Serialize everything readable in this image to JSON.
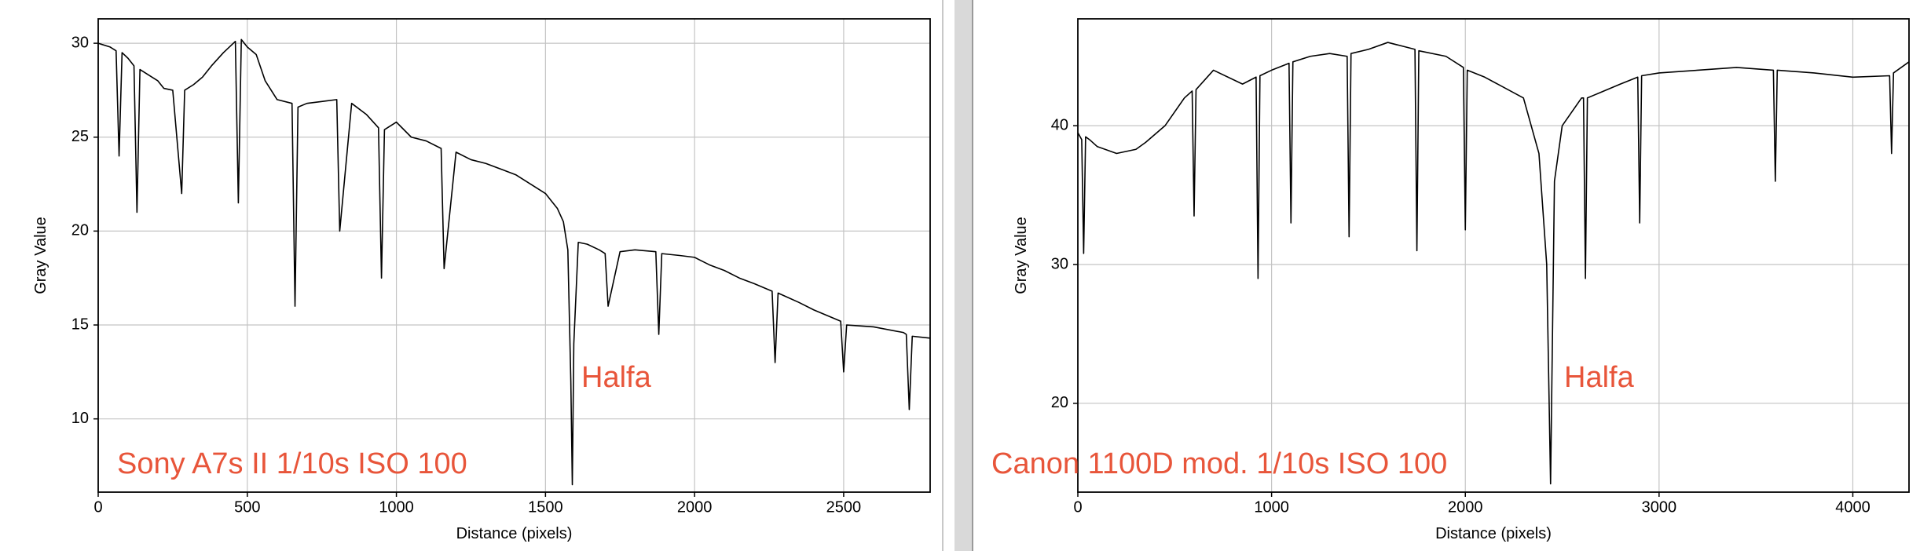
{
  "chart_data": [
    {
      "type": "line",
      "x_label": "Distance (pixels)",
      "y_label": "Gray Value",
      "annotations": [
        "Halfa",
        "Sony A7s II 1/10s ISO 100"
      ],
      "x": [
        0,
        40,
        60,
        70,
        80,
        100,
        120,
        130,
        140,
        180,
        200,
        220,
        250,
        280,
        290,
        320,
        350,
        380,
        420,
        460,
        470,
        480,
        500,
        530,
        560,
        600,
        650,
        660,
        670,
        700,
        750,
        800,
        810,
        850,
        900,
        940,
        950,
        960,
        1000,
        1050,
        1100,
        1150,
        1160,
        1200,
        1250,
        1300,
        1350,
        1400,
        1450,
        1500,
        1540,
        1560,
        1575,
        1585,
        1590,
        1595,
        1610,
        1640,
        1680,
        1700,
        1710,
        1750,
        1800,
        1870,
        1880,
        1890,
        1950,
        2000,
        2050,
        2100,
        2150,
        2200,
        2260,
        2270,
        2280,
        2350,
        2400,
        2490,
        2500,
        2510,
        2600,
        2700,
        2710,
        2720,
        2730,
        2790
      ],
      "series": [
        {
          "color": "#000000",
          "values": [
            30,
            29.8,
            29.6,
            24,
            29.5,
            29.2,
            28.8,
            21,
            28.6,
            28.2,
            28,
            27.6,
            27.5,
            22,
            27.5,
            27.8,
            28.2,
            28.8,
            29.5,
            30.1,
            21.5,
            30.2,
            29.8,
            29.4,
            28,
            27,
            26.8,
            16,
            26.6,
            26.8,
            26.9,
            27,
            20,
            26.8,
            26.2,
            25.5,
            17.5,
            25.4,
            25.8,
            25,
            24.8,
            24.4,
            18,
            24.2,
            23.8,
            23.6,
            23.3,
            23,
            22.5,
            22,
            21.2,
            20.5,
            19,
            12,
            6.5,
            14,
            19.4,
            19.3,
            19,
            18.8,
            16,
            18.9,
            19,
            18.9,
            14.5,
            18.8,
            18.7,
            18.6,
            18.2,
            17.9,
            17.5,
            17.2,
            16.8,
            13,
            16.7,
            16.2,
            15.8,
            15.2,
            12.5,
            15,
            14.9,
            14.6,
            14.5,
            10.5,
            14.4,
            14.3
          ]
        }
      ],
      "xlim": [
        0,
        2790
      ],
      "ylim": [
        6.1,
        31.3
      ],
      "xticks": [
        0,
        500,
        1000,
        1500,
        2000,
        2500
      ],
      "yticks": [
        10,
        15,
        20,
        25,
        30
      ],
      "grid": true
    },
    {
      "type": "line",
      "x_label": "Distance (pixels)",
      "y_label": "Gray Value",
      "annotations": [
        "Halfa",
        "Canon 1100D mod. 1/10s ISO 100"
      ],
      "x": [
        0,
        20,
        30,
        40,
        60,
        100,
        200,
        300,
        350,
        450,
        550,
        590,
        600,
        610,
        700,
        850,
        920,
        930,
        940,
        1000,
        1090,
        1100,
        1110,
        1200,
        1300,
        1390,
        1400,
        1410,
        1500,
        1600,
        1740,
        1750,
        1760,
        1900,
        1990,
        2000,
        2010,
        2100,
        2300,
        2380,
        2420,
        2440,
        2460,
        2500,
        2600,
        2610,
        2620,
        2630,
        2800,
        2890,
        2900,
        2910,
        3000,
        3200,
        3400,
        3590,
        3600,
        3610,
        3800,
        4000,
        4190,
        4200,
        4210,
        4290
      ],
      "series": [
        {
          "color": "#000000",
          "values": [
            39.5,
            39,
            30.8,
            39.2,
            39,
            38.5,
            38,
            38.3,
            38.8,
            40,
            42,
            42.5,
            33.5,
            42.6,
            44,
            43,
            43.5,
            29,
            43.6,
            44,
            44.5,
            33,
            44.6,
            45,
            45.2,
            45,
            32,
            45.2,
            45.5,
            46,
            45.5,
            31,
            45.4,
            45,
            44.2,
            32.5,
            44,
            43.5,
            42,
            38,
            30,
            14.2,
            36,
            40,
            42,
            42,
            29,
            42,
            43,
            43.5,
            33,
            43.6,
            43.8,
            44,
            44.2,
            44,
            36,
            44,
            43.8,
            43.5,
            43.6,
            38,
            43.8,
            44.6
          ]
        }
      ],
      "xlim": [
        0,
        4290
      ],
      "ylim": [
        13.6,
        47.7
      ],
      "xticks": [
        0,
        1000,
        2000,
        3000,
        4000
      ],
      "yticks": [
        20,
        30,
        40
      ],
      "grid": true
    }
  ]
}
